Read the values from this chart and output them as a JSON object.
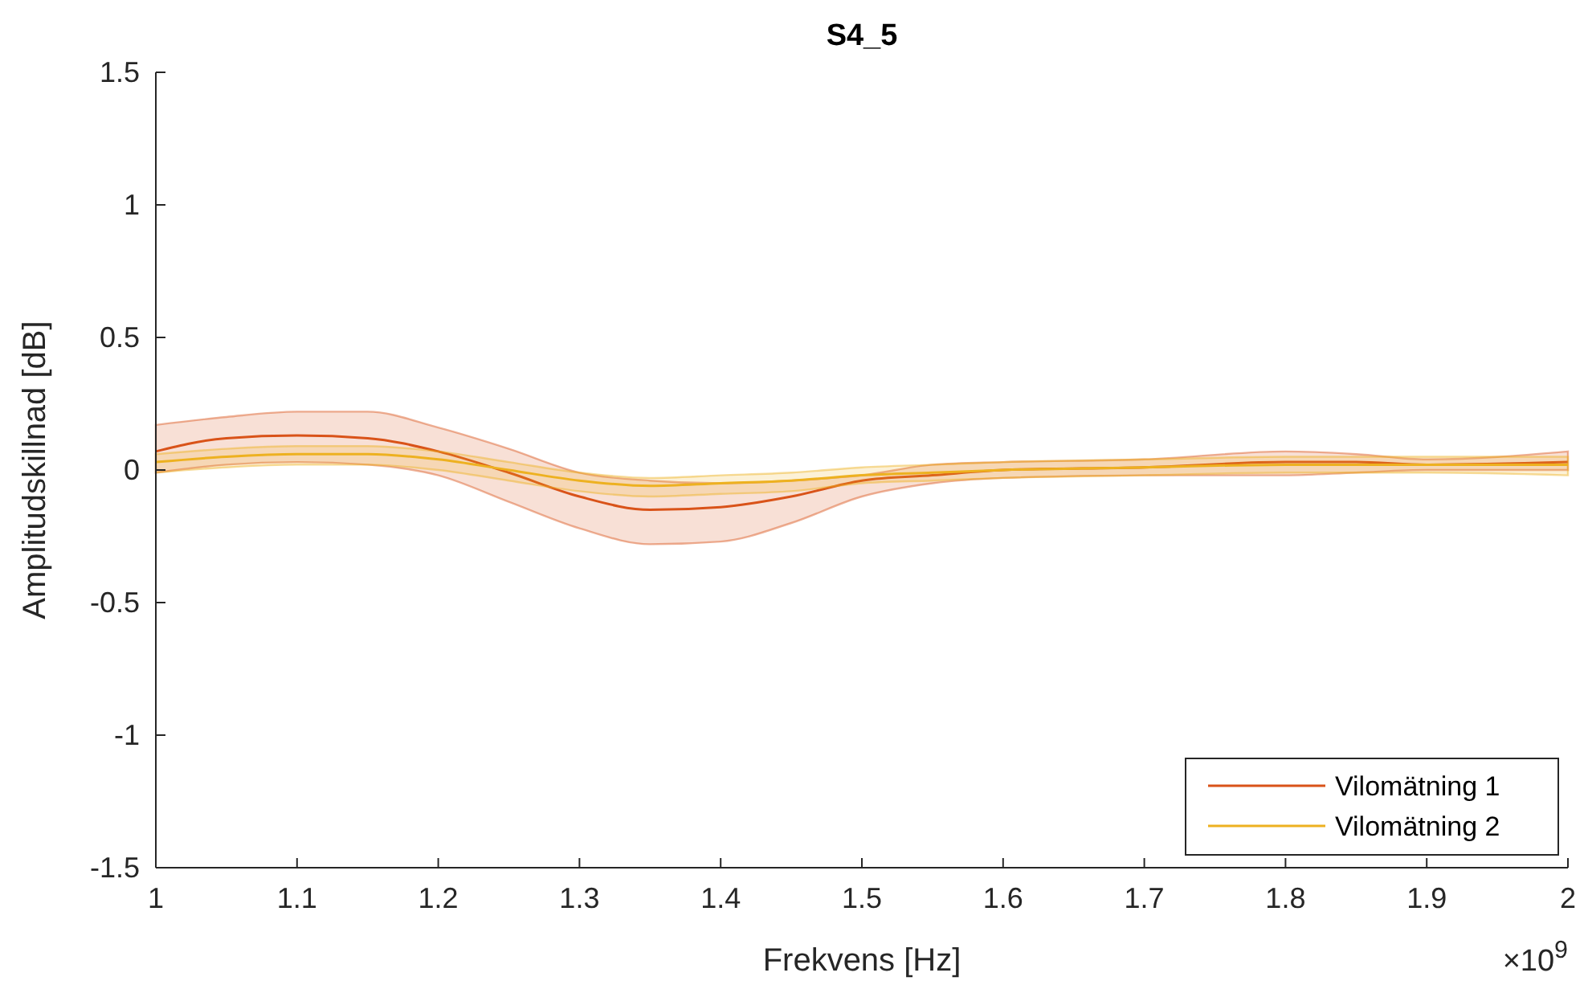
{
  "chart_data": {
    "type": "line",
    "title": "S4_5",
    "xlabel": "Frekvens [Hz]",
    "ylabel": "Amplitudskillnad [dB]",
    "x": [
      1.0,
      1.05,
      1.1,
      1.15,
      1.2,
      1.25,
      1.3,
      1.35,
      1.4,
      1.45,
      1.5,
      1.55,
      1.6,
      1.7,
      1.8,
      1.85,
      1.9,
      2.0
    ],
    "xlim": [
      1,
      2
    ],
    "xticks": [
      1,
      1.1,
      1.2,
      1.3,
      1.4,
      1.5,
      1.6,
      1.7,
      1.8,
      1.9,
      2
    ],
    "ylim": [
      -1.5,
      1.5
    ],
    "yticks": [
      -1.5,
      -1,
      -0.5,
      0,
      0.5,
      1,
      1.5
    ],
    "series": [
      {
        "name": "Vilomätning 1",
        "color": "#d95319",
        "values": [
          0.07,
          0.12,
          0.13,
          0.12,
          0.07,
          -0.01,
          -0.1,
          -0.15,
          -0.14,
          -0.1,
          -0.04,
          -0.02,
          0,
          0.01,
          0.03,
          0.03,
          0.02,
          0.03
        ],
        "lower": [
          -0.01,
          0.02,
          0.03,
          0.02,
          -0.02,
          -0.12,
          -0.22,
          -0.28,
          -0.27,
          -0.2,
          -0.1,
          -0.05,
          -0.03,
          -0.02,
          -0.02,
          -0.01,
          0,
          0
        ],
        "upper": [
          0.17,
          0.2,
          0.22,
          0.22,
          0.16,
          0.08,
          -0.01,
          -0.04,
          -0.05,
          -0.04,
          -0.02,
          0.02,
          0.03,
          0.04,
          0.07,
          0.06,
          0.04,
          0.07
        ]
      },
      {
        "name": "Vilomätning 2",
        "color": "#edb120",
        "values": [
          0.03,
          0.05,
          0.06,
          0.06,
          0.04,
          0,
          -0.04,
          -0.06,
          -0.05,
          -0.04,
          -0.02,
          -0.01,
          0,
          0.01,
          0.02,
          0.02,
          0.02,
          0.02
        ],
        "lower": [
          -0.01,
          0.01,
          0.02,
          0.02,
          0,
          -0.04,
          -0.08,
          -0.1,
          -0.09,
          -0.08,
          -0.05,
          -0.04,
          -0.03,
          -0.02,
          -0.01,
          -0.01,
          -0.01,
          -0.02
        ],
        "upper": [
          0.06,
          0.08,
          0.09,
          0.09,
          0.07,
          0.03,
          -0.01,
          -0.03,
          -0.02,
          -0.01,
          0.01,
          0.02,
          0.03,
          0.04,
          0.05,
          0.05,
          0.05,
          0.05
        ]
      }
    ],
    "legend": "bottom right",
    "grid": false,
    "annotations": [
      "×10$^{9}$"
    ]
  }
}
